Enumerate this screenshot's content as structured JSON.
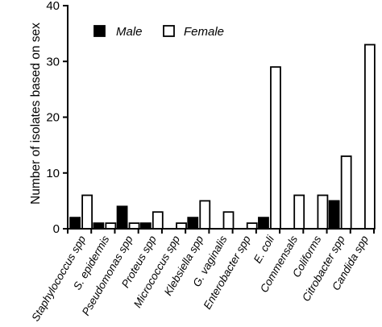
{
  "chart_data": {
    "type": "bar",
    "title": "",
    "xlabel": "",
    "ylabel": "Number of isolates based on sex",
    "ylim": [
      0,
      40
    ],
    "yticks": [
      0,
      10,
      20,
      30,
      40
    ],
    "grid": false,
    "legend_position": "top-left",
    "categories": [
      "Staphylococcus spp",
      "S. epidermis",
      "Pseudomonas spp",
      "Proteus spp",
      "Micrococcus spp",
      "Klebsiella spp",
      "G. vaginalis",
      "Enterobacter spp",
      "E. coli",
      "Commensals",
      "Coliforms",
      "Citrobacter spp",
      "Candida spp"
    ],
    "series": [
      {
        "name": "Male",
        "fill": "#000000",
        "values": [
          2,
          1,
          4,
          1,
          0,
          2,
          0,
          0,
          2,
          0,
          0,
          5,
          0
        ]
      },
      {
        "name": "Female",
        "fill": "#ffffff",
        "values": [
          6,
          1,
          1,
          3,
          1,
          5,
          3,
          1,
          29,
          6,
          6,
          13,
          33
        ]
      }
    ]
  }
}
